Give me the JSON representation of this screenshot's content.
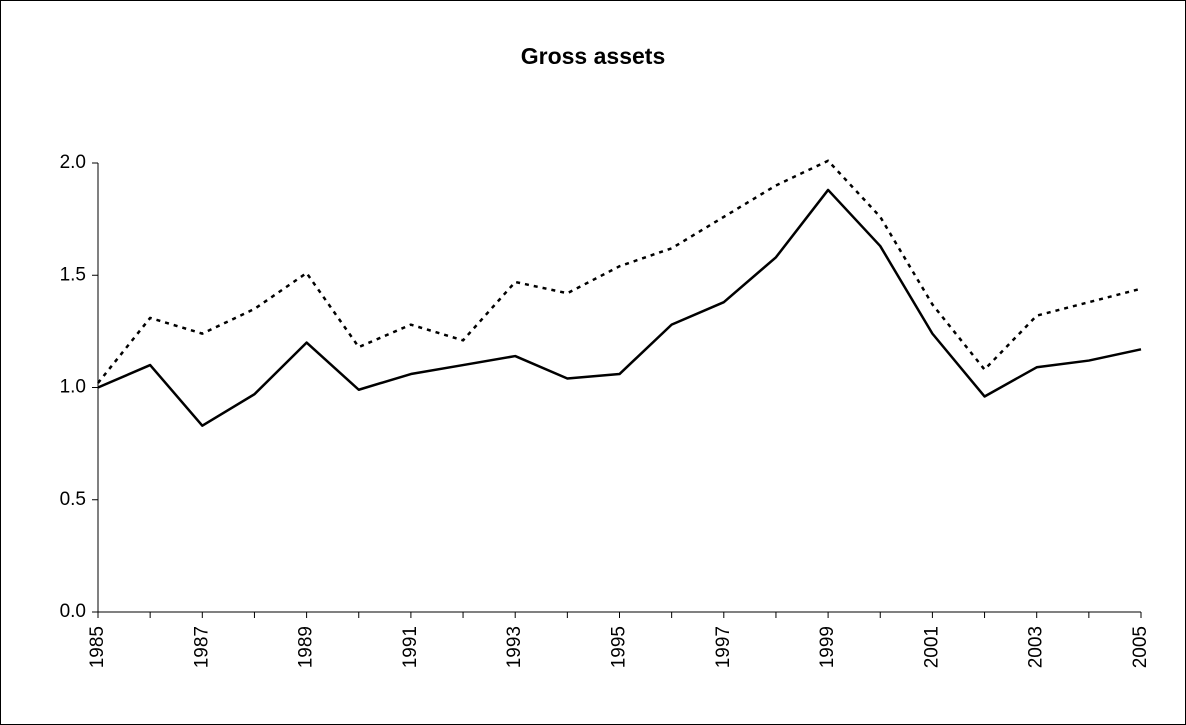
{
  "chart_data": {
    "type": "line",
    "title": "Gross assets",
    "categories": [
      "1985",
      null,
      "1987",
      null,
      "1989",
      null,
      "1991",
      null,
      "1993",
      null,
      "1995",
      null,
      "1997",
      null,
      "1999",
      null,
      "2001",
      null,
      "2003",
      null,
      "2005"
    ],
    "series": [
      {
        "color": "#000000",
        "line_style": "solid",
        "values": [
          1.0,
          1.1,
          0.83,
          0.97,
          1.2,
          0.99,
          1.06,
          1.1,
          1.14,
          1.04,
          1.06,
          1.28,
          1.38,
          1.58,
          1.88,
          1.63,
          1.24,
          0.96,
          1.09,
          1.12,
          1.17
        ]
      },
      {
        "color": "#000000",
        "line_style": "dotted",
        "values": [
          1.02,
          1.31,
          1.24,
          1.35,
          1.51,
          1.18,
          1.28,
          1.21,
          1.47,
          1.42,
          1.54,
          1.62,
          1.76,
          1.9,
          2.01,
          1.76,
          1.37,
          1.08,
          1.32,
          1.38,
          1.44
        ]
      }
    ],
    "ylim": [
      0,
      2.0
    ],
    "yticks": [
      {
        "value": 0,
        "label": "0.0"
      },
      0.5,
      {
        "value": 1.0,
        "label": "1.0"
      },
      1.5,
      {
        "value": 2.0,
        "label": "2.0"
      }
    ],
    "grid": false
  }
}
